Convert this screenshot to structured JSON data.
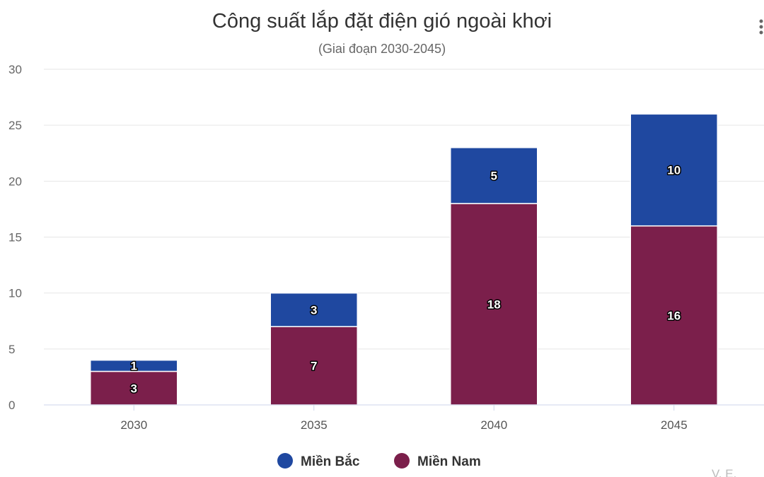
{
  "chart_data": {
    "type": "bar",
    "stacked": true,
    "title": "Công suất lắp đặt điện gió ngoài khơi",
    "subtitle": "(Giai đoạn 2030-2045)",
    "categories": [
      "2030",
      "2035",
      "2040",
      "2045"
    ],
    "series": [
      {
        "name": "Miền Nam",
        "values": [
          3,
          7,
          18,
          16
        ],
        "color": "#7b1f4b"
      },
      {
        "name": "Miền Bắc",
        "values": [
          1,
          3,
          5,
          10
        ],
        "color": "#1f48a0"
      }
    ],
    "ylim": [
      0,
      30
    ],
    "yticks": [
      "0",
      "5",
      "10",
      "15",
      "20",
      "25",
      "30"
    ],
    "legend": [
      {
        "name": "Miền Bắc",
        "color": "#1f48a0"
      },
      {
        "name": "Miền Nam",
        "color": "#7b1f4b"
      }
    ],
    "legend_position": "bottom",
    "grid": true,
    "menu_icon": "hamburger-menu-icon"
  }
}
